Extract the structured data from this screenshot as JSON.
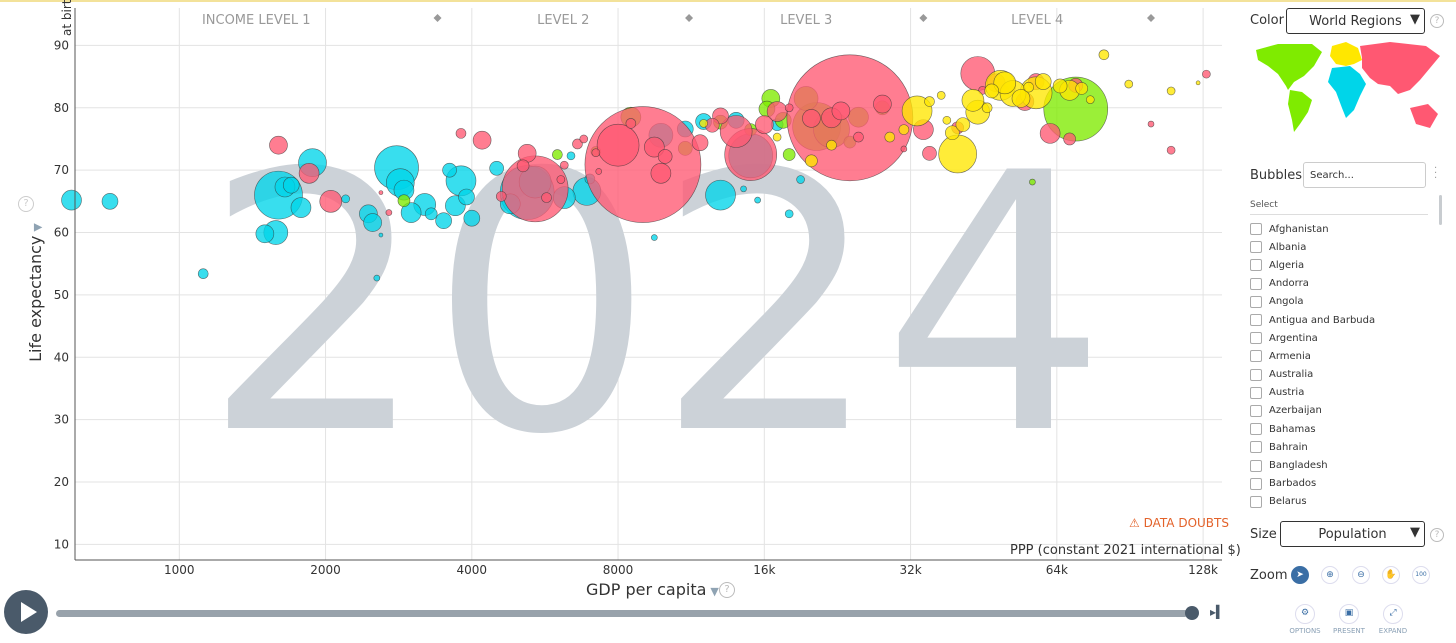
{
  "chart_data": {
    "type": "scatter",
    "year_label": "2024",
    "ylabel": "Life expectancy",
    "ylabel_sub": "at birth",
    "xlabel": "GDP per capita",
    "x_unit_label": "PPP (constant 2021 international $)",
    "x_scale": "log2",
    "xlim": [
      610,
      140000
    ],
    "ylim": [
      7.5,
      96
    ],
    "x_ticks": [
      1000,
      2000,
      4000,
      8000,
      16000,
      32000,
      64000,
      128000
    ],
    "x_tick_labels": [
      "1000",
      "2000",
      "4000",
      "8000",
      "16k",
      "32k",
      "64k",
      "128k"
    ],
    "y_ticks": [
      10,
      20,
      30,
      40,
      50,
      60,
      70,
      80,
      90
    ],
    "income_levels": [
      "INCOME LEVEL 1",
      "LEVEL 2",
      "LEVEL 3",
      "LEVEL 4"
    ],
    "income_boundaries": [
      3400,
      11200,
      34000,
      100000
    ],
    "size_by": "Population",
    "color_by": "World Regions",
    "region_colors": {
      "africa": "#00d5e9",
      "americas": "#7feb00",
      "asia": "#ff5872",
      "europe": "#ffe700"
    },
    "series": [
      {
        "name": "africa",
        "color": "#00d5e9",
        "points": [
          [
            600,
            65.2,
            10
          ],
          [
            720,
            65,
            8
          ],
          [
            1120,
            53.4,
            5
          ],
          [
            1500,
            59.8,
            9
          ],
          [
            1580,
            60,
            12
          ],
          [
            1600,
            66,
            24
          ],
          [
            1650,
            67.3,
            10
          ],
          [
            1700,
            67.6,
            8
          ],
          [
            1780,
            64,
            10
          ],
          [
            1880,
            71.2,
            14
          ],
          [
            2200,
            65.4,
            4
          ],
          [
            2450,
            63,
            9
          ],
          [
            2500,
            61.6,
            9
          ],
          [
            2550,
            52.7,
            3
          ],
          [
            2600,
            59.6,
            2
          ],
          [
            2800,
            70.4,
            22
          ],
          [
            2850,
            68,
            14
          ],
          [
            2900,
            66.8,
            10
          ],
          [
            3000,
            63.2,
            10
          ],
          [
            3200,
            64.5,
            11
          ],
          [
            3300,
            63,
            6
          ],
          [
            3500,
            61.9,
            8
          ],
          [
            3600,
            70,
            7
          ],
          [
            3700,
            64.3,
            10
          ],
          [
            3800,
            68.3,
            15
          ],
          [
            3900,
            65.7,
            8
          ],
          [
            4000,
            62.3,
            8
          ],
          [
            4500,
            70.3,
            7
          ],
          [
            4800,
            64.6,
            10
          ],
          [
            5200,
            66.4,
            27
          ],
          [
            5400,
            68.1,
            16
          ],
          [
            6200,
            65.6,
            11
          ],
          [
            6400,
            72.3,
            4
          ],
          [
            6900,
            66.6,
            14
          ],
          [
            7000,
            68.6,
            5
          ],
          [
            9500,
            59.2,
            3
          ],
          [
            9800,
            75.6,
            12
          ],
          [
            11000,
            76.6,
            8
          ],
          [
            12000,
            77.8,
            8
          ],
          [
            13000,
            66,
            15
          ],
          [
            14000,
            78,
            8
          ],
          [
            15000,
            72.3,
            22
          ],
          [
            17000,
            77.3,
            6
          ],
          [
            18000,
            63,
            4
          ],
          [
            15500,
            65.2,
            3
          ],
          [
            14500,
            67,
            3
          ],
          [
            19000,
            68.5,
            4
          ]
        ]
      },
      {
        "name": "americas",
        "color": "#7feb00",
        "points": [
          [
            2900,
            65.1,
            6
          ],
          [
            6000,
            72.5,
            5
          ],
          [
            7200,
            73,
            5
          ],
          [
            8500,
            78.5,
            10
          ],
          [
            11000,
            73.5,
            7
          ],
          [
            13000,
            77.7,
            7
          ],
          [
            15000,
            76.5,
            6
          ],
          [
            16200,
            79.8,
            8
          ],
          [
            16500,
            81.5,
            9
          ],
          [
            17500,
            78,
            8
          ],
          [
            18000,
            72.5,
            6
          ],
          [
            19500,
            81.5,
            12
          ],
          [
            20500,
            77,
            24
          ],
          [
            22000,
            76.5,
            18
          ],
          [
            24000,
            74.5,
            6
          ],
          [
            25000,
            78.5,
            10
          ],
          [
            28000,
            80,
            7
          ],
          [
            70000,
            79.8,
            32
          ],
          [
            57000,
            68.1,
            3
          ]
        ]
      },
      {
        "name": "asia",
        "color": "#ff5872",
        "points": [
          [
            1600,
            74,
            9
          ],
          [
            1850,
            69.5,
            10
          ],
          [
            2050,
            65,
            11
          ],
          [
            2600,
            66.4,
            2
          ],
          [
            2700,
            63.2,
            3
          ],
          [
            3800,
            75.9,
            5
          ],
          [
            4200,
            74.8,
            9
          ],
          [
            4600,
            65.8,
            5
          ],
          [
            5100,
            70.7,
            6
          ],
          [
            5200,
            72.7,
            9
          ],
          [
            5400,
            67,
            33
          ],
          [
            5700,
            65.6,
            5
          ],
          [
            6100,
            68.5,
            4
          ],
          [
            6200,
            70.8,
            4
          ],
          [
            6600,
            74.2,
            5
          ],
          [
            6800,
            75,
            4
          ],
          [
            7200,
            72.8,
            4
          ],
          [
            7300,
            69.8,
            3
          ],
          [
            8000,
            74,
            21
          ],
          [
            8500,
            77.5,
            5
          ],
          [
            9000,
            70.9,
            58
          ],
          [
            9500,
            73.7,
            10
          ],
          [
            9800,
            69.5,
            10
          ],
          [
            10000,
            72.2,
            7
          ],
          [
            11800,
            74.4,
            8
          ],
          [
            12500,
            77.2,
            7
          ],
          [
            13000,
            78.7,
            8
          ],
          [
            14000,
            76.2,
            16
          ],
          [
            15000,
            72.5,
            26
          ],
          [
            16000,
            77.3,
            9
          ],
          [
            17000,
            79.4,
            10
          ],
          [
            18000,
            80,
            4
          ],
          [
            20000,
            78.3,
            9
          ],
          [
            22000,
            78.4,
            10
          ],
          [
            23000,
            79.5,
            9
          ],
          [
            24000,
            78.4,
            63
          ],
          [
            25000,
            75.3,
            5
          ],
          [
            28000,
            80.6,
            9
          ],
          [
            31000,
            73.4,
            3
          ],
          [
            34000,
            76.5,
            10
          ],
          [
            35000,
            72.7,
            7
          ],
          [
            40000,
            76.8,
            6
          ],
          [
            44000,
            85.5,
            17
          ],
          [
            45000,
            82.8,
            4
          ],
          [
            48000,
            84,
            9
          ],
          [
            50000,
            82.9,
            4
          ],
          [
            55000,
            81,
            9
          ],
          [
            58000,
            84.2,
            8
          ],
          [
            62000,
            75.9,
            10
          ],
          [
            68000,
            75,
            6
          ],
          [
            70000,
            83.6,
            7
          ],
          [
            100000,
            77.4,
            3
          ],
          [
            110000,
            73.2,
            4
          ],
          [
            130000,
            85.4,
            4
          ]
        ]
      },
      {
        "name": "europe",
        "color": "#ffe700",
        "points": [
          [
            12000,
            77.5,
            4
          ],
          [
            17000,
            75.3,
            4
          ],
          [
            20000,
            71.5,
            6
          ],
          [
            22000,
            74,
            5
          ],
          [
            29000,
            75.3,
            5
          ],
          [
            31000,
            76.5,
            5
          ],
          [
            33000,
            79.5,
            15
          ],
          [
            35000,
            81,
            5
          ],
          [
            37000,
            82,
            4
          ],
          [
            38000,
            78,
            4
          ],
          [
            39000,
            76,
            7
          ],
          [
            40000,
            72.6,
            19
          ],
          [
            41000,
            77.3,
            7
          ],
          [
            43000,
            81.2,
            11
          ],
          [
            44000,
            79.3,
            12
          ],
          [
            46000,
            80,
            5
          ],
          [
            47000,
            82.7,
            7
          ],
          [
            49000,
            83.6,
            15
          ],
          [
            50000,
            84,
            11
          ],
          [
            52000,
            82.3,
            13
          ],
          [
            54000,
            81.5,
            9
          ],
          [
            56000,
            83.3,
            5
          ],
          [
            58000,
            82.4,
            16
          ],
          [
            60000,
            84.2,
            8
          ],
          [
            65000,
            83.5,
            7
          ],
          [
            68000,
            82.8,
            10
          ],
          [
            72000,
            83.1,
            6
          ],
          [
            75000,
            81.3,
            4
          ],
          [
            80000,
            88.5,
            5
          ],
          [
            90000,
            83.8,
            4
          ],
          [
            110000,
            82.7,
            4
          ],
          [
            125000,
            84,
            2
          ]
        ]
      }
    ]
  },
  "warning_label": "DATA DOUBTS",
  "sidebar": {
    "color_label": "Color",
    "color_value": "World Regions",
    "bubbles_label": "Bubbles",
    "search_placeholder": "Search...",
    "select_header": "Select",
    "countries": [
      "Afghanistan",
      "Albania",
      "Algeria",
      "Andorra",
      "Angola",
      "Antigua and Barbuda",
      "Argentina",
      "Armenia",
      "Australia",
      "Austria",
      "Azerbaijan",
      "Bahamas",
      "Bahrain",
      "Bangladesh",
      "Barbados",
      "Belarus"
    ],
    "size_label": "Size",
    "size_value": "Population",
    "zoom_label": "Zoom",
    "zoom_percent": "100",
    "actions": [
      "OPTIONS",
      "PRESENT",
      "EXPAND"
    ]
  }
}
